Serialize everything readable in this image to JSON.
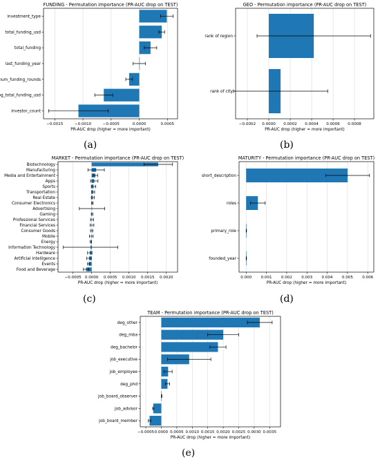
{
  "colors": {
    "bar": "#1f77b4",
    "grid": "#d9d9d9",
    "error": "#000000"
  },
  "chart_data": [
    {
      "id": "a",
      "type": "bar",
      "orientation": "horizontal",
      "title": "FUNDING - Permutation importance (PR-AUC drop on TEST)",
      "xlabel": "PR-AUC drop (higher = more important)",
      "sublabel": "(a)",
      "xlim": [
        -0.0017,
        0.00068
      ],
      "xticks": [
        -0.0015,
        -0.001,
        -0.0005,
        0,
        0.0005
      ],
      "xtick_labels": [
        "−0.0015",
        "−0.0010",
        "−0.0005",
        "0.0000",
        "0.0005"
      ],
      "grid": true,
      "categories": [
        "investment_type",
        "total_funding_usd",
        "total_funding",
        "last_funding_year",
        "num_funding_rounds",
        "log_total_funding_usd",
        "investor_count"
      ],
      "values": [
        0.00049,
        0.0004,
        0.0002,
        0.0,
        -0.00018,
        -0.00063,
        -0.00108
      ],
      "errors": [
        0.00011,
        5e-05,
        0.00011,
        0.00011,
        6e-05,
        0.00016,
        0.00053
      ]
    },
    {
      "id": "b",
      "type": "bar",
      "orientation": "horizontal",
      "title": "GEO - Permutation importance (PR-AUC drop on TEST)",
      "xlabel": "PR-AUC drop (higher = more important)",
      "sublabel": "(b)",
      "xlim": [
        -0.00031,
        0.00098
      ],
      "xticks": [
        -0.0002,
        0,
        0.0002,
        0.0004,
        0.0006,
        0.0008
      ],
      "xtick_labels": [
        "−0.0002",
        "0.0000",
        "0.0002",
        "0.0004",
        "0.0006",
        "0.0008"
      ],
      "grid": true,
      "categories": [
        "rank of region",
        "rank of city"
      ],
      "values": [
        0.00042,
        0.00011
      ],
      "errors": [
        0.00053,
        0.00044
      ]
    },
    {
      "id": "c",
      "type": "bar",
      "orientation": "horizontal",
      "title": "MARKET - Permutation importance (PR-AUC drop on TEST)",
      "xlabel": "PR-AUC drop (higher = more important)",
      "sublabel": "(c)",
      "xlim": [
        -0.0009,
        0.0023
      ],
      "xticks": [
        -0.0005,
        0,
        0.0005,
        0.001,
        0.0015,
        0.002
      ],
      "xtick_labels": [
        "−0.0005",
        "0.0000",
        "0.0005",
        "0.0010",
        "0.0015",
        "0.0020"
      ],
      "grid": true,
      "categories": [
        "Biotechnology",
        "Manufacturing",
        "Media and Entertainment",
        "Apps",
        "Sports",
        "Transportation",
        "Real Estate",
        "Consumer Electronics",
        "Advertising",
        "Gaming",
        "Professional Services",
        "Financial Services",
        "Consumer Goods",
        "Mobile",
        "Energy",
        "Information Technology",
        "Hardware",
        "Artificial Intelligence",
        "Events",
        "Food and Beverage"
      ],
      "values": [
        0.00178,
        0.00012,
        0.0001,
        7e-05,
        5e-05,
        4e-05,
        3e-05,
        2e-05,
        1e-05,
        1e-05,
        1e-05,
        1e-05,
        0.0,
        -1e-05,
        -2e-05,
        -3e-05,
        -5e-05,
        -7e-05,
        -8e-05,
        -0.00015
      ],
      "errors": [
        0.00038,
        0.00022,
        6e-05,
        0.0001,
        6e-05,
        4e-05,
        4e-05,
        2e-05,
        0.00034,
        2e-05,
        4e-05,
        5e-05,
        3e-05,
        5e-05,
        2e-05,
        0.00073,
        6e-05,
        6e-05,
        3e-05,
        7e-05
      ]
    },
    {
      "id": "d",
      "type": "bar",
      "orientation": "horizontal",
      "title": "MATURITY - Permutation importance (PR-AUC drop on TEST)",
      "xlabel": "PR-AUC drop (higher = more important)",
      "sublabel": "(d)",
      "xlim": [
        -0.00035,
        0.0063
      ],
      "xticks": [
        0,
        0.001,
        0.002,
        0.003,
        0.004,
        0.005,
        0.006
      ],
      "xtick_labels": [
        "0.000",
        "0.001",
        "0.002",
        "0.003",
        "0.004",
        "0.005",
        "0.006"
      ],
      "grid": true,
      "categories": [
        "short_description",
        "roles",
        "primary_role",
        "founded_year"
      ],
      "values": [
        0.00501,
        0.00058,
        1e-05,
        1e-05
      ],
      "errors": [
        0.00108,
        0.00036,
        1e-05,
        1e-05
      ]
    },
    {
      "id": "e",
      "type": "bar",
      "orientation": "horizontal",
      "title": "TEAM - Permutation importance (PR-AUC drop on TEST)",
      "xlabel": "PR-AUC drop (higher = more important)",
      "sublabel": "(e)",
      "xlim": [
        -0.00068,
        0.00385
      ],
      "xticks": [
        -0.0005,
        0,
        0.0005,
        0.001,
        0.0015,
        0.002,
        0.0025,
        0.003,
        0.0035
      ],
      "xtick_labels": [
        "−0.0005",
        "0.0000",
        "0.0005",
        "0.0010",
        "0.0015",
        "0.0020",
        "0.0025",
        "0.0030",
        "0.0035"
      ],
      "grid": true,
      "categories": [
        "deg_other",
        "deg_mba",
        "deg_bachelor",
        "job_executive",
        "job_employee",
        "deg_phd",
        "job_board_observer",
        "job_advisor",
        "job_board_member"
      ],
      "values": [
        0.00318,
        0.002,
        0.00183,
        0.0009,
        0.00022,
        0.0002,
        1e-05,
        -0.00026,
        -0.00038
      ],
      "errors": [
        0.0004,
        0.0005,
        0.00026,
        0.0007,
        0.00013,
        7e-05,
        1e-05,
        2e-05,
        4e-05
      ]
    }
  ]
}
